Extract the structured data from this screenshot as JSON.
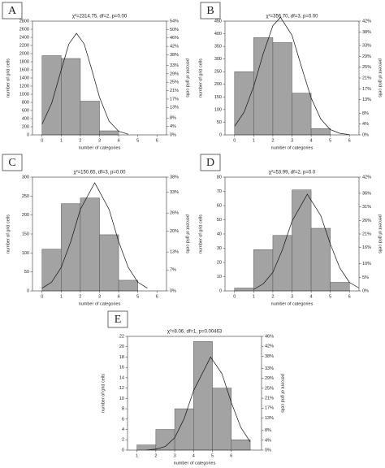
{
  "chart_data": [
    {
      "type": "histogram",
      "label": "A",
      "title": "χ²=2314.75, df=2, p=0.00",
      "xlabel": "number of categories",
      "ylabel": "number of grid cells",
      "y2label": "percent of grid cells",
      "color": "#a3a3a3",
      "bins": [
        0,
        1,
        2,
        3,
        4
      ],
      "values": [
        1950,
        1880,
        830,
        100
      ],
      "xlim": [
        -0.5,
        6.5
      ],
      "xticks": [
        0,
        1,
        2,
        3,
        4,
        5,
        6
      ],
      "ylim": [
        0,
        2800
      ],
      "yticks": [
        0,
        200,
        400,
        600,
        800,
        1000,
        1200,
        1400,
        1600,
        1800,
        2000,
        2200,
        2400,
        2600,
        2800
      ],
      "y2lim": [
        0,
        54
      ],
      "y2ticks": [
        {
          "value": 0,
          "label": "0%"
        },
        {
          "value": 4,
          "label": "4%"
        },
        {
          "value": 8,
          "label": "8%"
        },
        {
          "value": 13,
          "label": "13%"
        },
        {
          "value": 17,
          "label": "17%"
        },
        {
          "value": 21,
          "label": "21%"
        },
        {
          "value": 25,
          "label": "25%"
        },
        {
          "value": 29,
          "label": "29%"
        },
        {
          "value": 33,
          "label": "33%"
        },
        {
          "value": 38,
          "label": "38%"
        },
        {
          "value": 42,
          "label": "42%"
        },
        {
          "value": 46,
          "label": "46%"
        },
        {
          "value": 50,
          "label": "50%"
        },
        {
          "value": 54,
          "label": "54%"
        }
      ],
      "fit_curve": {
        "x": [
          0,
          0.5,
          1,
          1.4,
          1.8,
          2.2,
          2.6,
          3,
          3.5,
          4,
          4.5
        ],
        "values": [
          263,
          775,
          1600,
          2238,
          2500,
          2238,
          1600,
          925,
          338,
          88,
          16
        ]
      }
    },
    {
      "type": "histogram",
      "label": "B",
      "title": "χ²=356.70, df=3, p=0.00",
      "xlabel": "number of categories",
      "ylabel": "number of grid cells",
      "y2label": "percent of grid cells",
      "color": "#a3a3a3",
      "bins": [
        0,
        1,
        2,
        3,
        4,
        5
      ],
      "values": [
        250,
        385,
        365,
        165,
        25
      ],
      "xlim": [
        -0.5,
        6.5
      ],
      "xticks": [
        0,
        1,
        2,
        3,
        4,
        5,
        6
      ],
      "ylim": [
        0,
        450
      ],
      "yticks": [
        0,
        50,
        100,
        150,
        200,
        250,
        300,
        350,
        400,
        450
      ],
      "y2lim": [
        0,
        42
      ],
      "y2ticks": [
        {
          "value": 0,
          "label": "0%"
        },
        {
          "value": 4,
          "label": "4%"
        },
        {
          "value": 8,
          "label": "8%"
        },
        {
          "value": 13,
          "label": "13%"
        },
        {
          "value": 17,
          "label": "17%"
        },
        {
          "value": 21,
          "label": "21%"
        },
        {
          "value": 25,
          "label": "25%"
        },
        {
          "value": 29,
          "label": "29%"
        },
        {
          "value": 33,
          "label": "33%"
        },
        {
          "value": 38,
          "label": "38%"
        },
        {
          "value": 42,
          "label": "42%"
        }
      ],
      "fit_curve": {
        "x": [
          0,
          0.5,
          1,
          1.5,
          2,
          2.4,
          3,
          3.5,
          4,
          4.5,
          5,
          5.5,
          6
        ],
        "values": [
          34,
          90,
          192,
          322,
          432,
          465,
          394,
          268,
          146,
          63,
          21,
          6,
          1
        ]
      }
    },
    {
      "type": "histogram",
      "label": "C",
      "title": "χ²=150.65, df=3, p=0.00",
      "xlabel": "number of categories",
      "ylabel": "number of grid cells",
      "y2label": "percent of grid cells",
      "color": "#a3a3a3",
      "bins": [
        0,
        1,
        2,
        3,
        4,
        5
      ],
      "values": [
        110,
        230,
        245,
        148,
        28
      ],
      "xlim": [
        -0.5,
        6.5
      ],
      "xticks": [
        0,
        1,
        2,
        3,
        4,
        5,
        6
      ],
      "ylim": [
        0,
        300
      ],
      "yticks": [
        0,
        50,
        100,
        150,
        200,
        250,
        300
      ],
      "y2lim": [
        0,
        38
      ],
      "y2ticks": [
        {
          "value": 0,
          "label": "0%"
        },
        {
          "value": 7,
          "label": "7%"
        },
        {
          "value": 13,
          "label": "13%"
        },
        {
          "value": 20,
          "label": "20%"
        },
        {
          "value": 26,
          "label": "26%"
        },
        {
          "value": 33,
          "label": "33%"
        },
        {
          "value": 38,
          "label": "38%"
        }
      ],
      "fit_curve": {
        "x": [
          0,
          0.5,
          1,
          1.5,
          2,
          2.75,
          3.5,
          4,
          4.5,
          5,
          5.5
        ],
        "values": [
          7,
          23,
          62,
          130,
          215,
          285,
          215,
          130,
          62,
          23,
          7
        ]
      }
    },
    {
      "type": "histogram",
      "label": "D",
      "title": "χ²=53.99, df=2, p=0.0",
      "xlabel": "number of categories",
      "ylabel": "number of grid cells",
      "y2label": "percent of grid cells",
      "color": "#a3a3a3",
      "bins": [
        0,
        1,
        2,
        3,
        4,
        5,
        6
      ],
      "values": [
        2,
        29,
        39,
        71,
        44,
        6
      ],
      "xlim": [
        -0.5,
        6.5
      ],
      "xticks": [
        0,
        1,
        2,
        3,
        4,
        5,
        6
      ],
      "ylim": [
        0,
        80
      ],
      "yticks": [
        0,
        10,
        20,
        30,
        40,
        50,
        60,
        70,
        80
      ],
      "y2lim": [
        0,
        42
      ],
      "y2ticks": [
        {
          "value": 0,
          "label": "0%"
        },
        {
          "value": 5,
          "label": "5%"
        },
        {
          "value": 10,
          "label": "10%"
        },
        {
          "value": 16,
          "label": "16%"
        },
        {
          "value": 21,
          "label": "21%"
        },
        {
          "value": 26,
          "label": "26%"
        },
        {
          "value": 31,
          "label": "31%"
        },
        {
          "value": 36,
          "label": "36%"
        },
        {
          "value": 42,
          "label": "42%"
        }
      ],
      "fit_curve": {
        "x": [
          1,
          1.5,
          2,
          2.5,
          3,
          3.8,
          4.5,
          5,
          5.5,
          6,
          6.5
        ],
        "values": [
          1,
          5,
          13,
          29,
          49,
          68,
          53,
          33,
          16,
          6,
          2
        ]
      }
    },
    {
      "type": "histogram",
      "label": "E",
      "title": "χ²=8.06, df=1, p=0.00463",
      "xlabel": "number of categories",
      "ylabel": "number of grid cells",
      "y2label": "percent of grid cells",
      "color": "#a3a3a3",
      "bins": [
        1,
        2,
        3,
        4,
        5,
        6,
        7
      ],
      "values": [
        1,
        4,
        8,
        21,
        12,
        2
      ],
      "xlim": [
        0.5,
        7.6
      ],
      "xticks": [
        1,
        2,
        3,
        4,
        5,
        6
      ],
      "ylim": [
        0,
        22
      ],
      "yticks": [
        0,
        2,
        4,
        6,
        8,
        10,
        12,
        14,
        16,
        18,
        20,
        22
      ],
      "y2lim": [
        0,
        46
      ],
      "y2ticks": [
        {
          "value": 0,
          "label": "0%"
        },
        {
          "value": 4,
          "label": "4%"
        },
        {
          "value": 8,
          "label": "8%"
        },
        {
          "value": 13,
          "label": "13%"
        },
        {
          "value": 17,
          "label": "17%"
        },
        {
          "value": 21,
          "label": "21%"
        },
        {
          "value": 25,
          "label": "25%"
        },
        {
          "value": 29,
          "label": "29%"
        },
        {
          "value": 33,
          "label": "33%"
        },
        {
          "value": 38,
          "label": "38%"
        },
        {
          "value": 42,
          "label": "42%"
        },
        {
          "value": 46,
          "label": "46%"
        }
      ],
      "fit_curve": {
        "x": [
          1.5,
          2,
          2.5,
          3,
          3.5,
          4,
          4.9,
          5.5,
          6,
          6.5,
          7
        ],
        "values": [
          0,
          0.2,
          0.7,
          2.4,
          6.1,
          11.5,
          18,
          14.8,
          9.2,
          4.4,
          1.6
        ]
      }
    }
  ]
}
